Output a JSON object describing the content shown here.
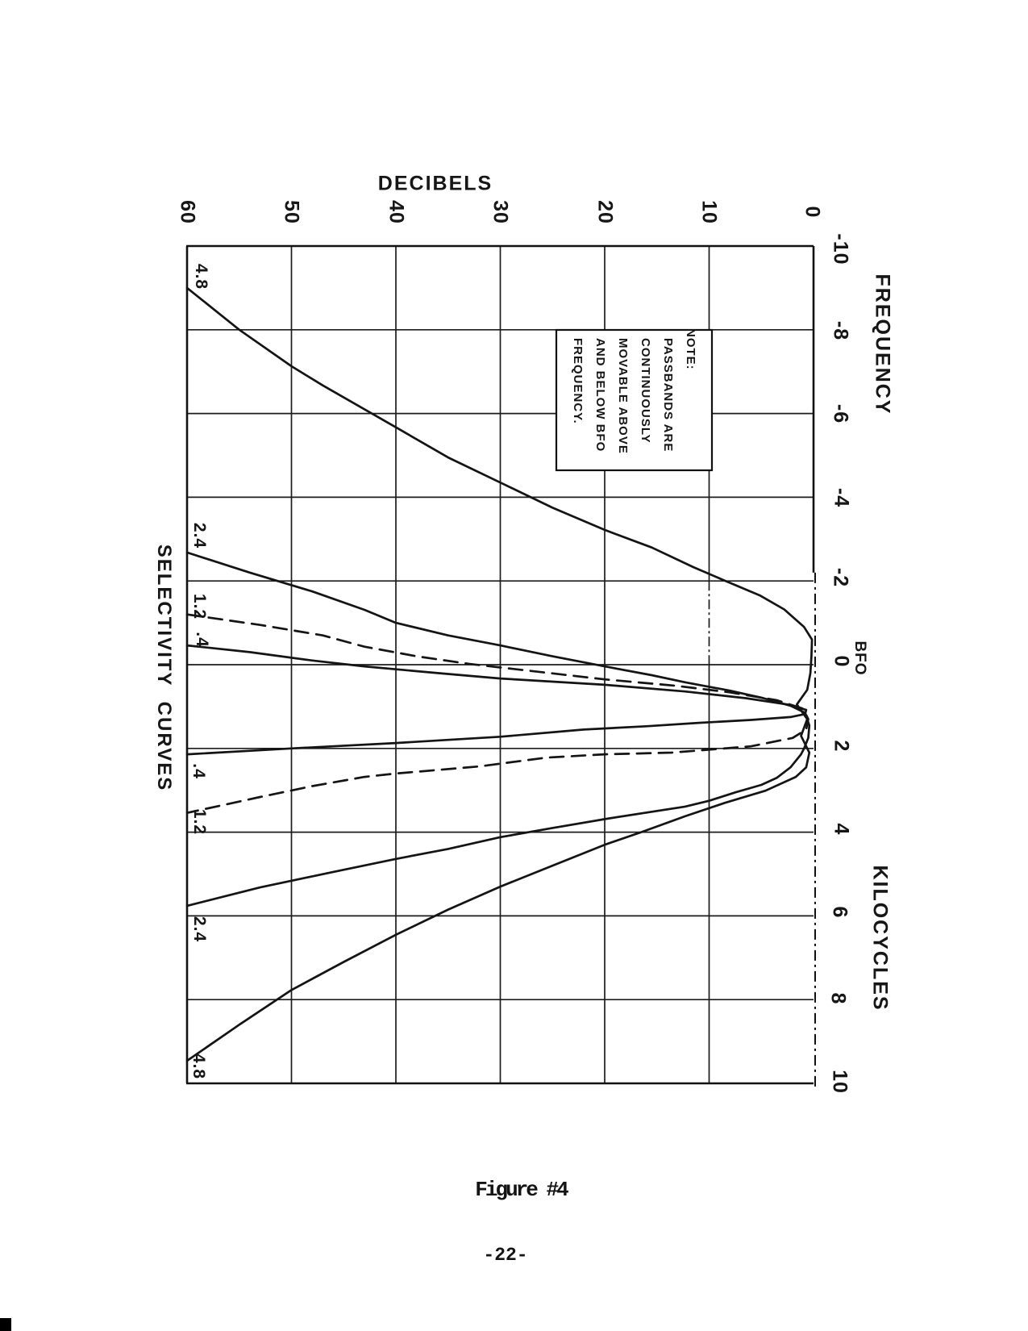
{
  "page": {
    "figure_caption": "Figure #4",
    "page_number": "-22-"
  },
  "chart_data": {
    "type": "line",
    "title": "SELECTIVITY CURVES",
    "orientation": "rotated-90-clockwise",
    "x_axis": {
      "label": "DECIBELS",
      "range": [
        60,
        0
      ],
      "grid": true,
      "ticks": [
        "60",
        "50",
        "40",
        "30",
        "20",
        "10",
        "0"
      ]
    },
    "y_axis": {
      "label": "FREQUENCY",
      "unit_label": "KILOCYCLES",
      "bfo_label": "BFO",
      "range": [
        -10,
        10
      ],
      "grid": true,
      "ticks": [
        "-10",
        "-8",
        "-6",
        "-4",
        "-2",
        "0",
        "2",
        "4",
        "6",
        "8",
        "10"
      ]
    },
    "note": {
      "lines": [
        "NOTE:",
        "PASSBANDS ARE",
        "CONTINUOUSLY",
        "MOVABLE ABOVE",
        "AND BELOW BFO",
        "FREQUENCY."
      ]
    },
    "curve_labels": {
      "upper": [
        "4.8",
        "2.4",
        "1.2",
        ".4"
      ],
      "lower": [
        ".4",
        "1.2",
        "2.4",
        "4.8"
      ]
    },
    "series": [
      {
        "name": "4.8",
        "style": "solid",
        "points_freq_db": [
          [
            -9.0,
            60
          ],
          [
            -8.0,
            55
          ],
          [
            -7.13,
            50
          ],
          [
            -6.67,
            47
          ],
          [
            -5.67,
            40
          ],
          [
            -4.95,
            35
          ],
          [
            -4.35,
            30
          ],
          [
            -3.75,
            25
          ],
          [
            -3.22,
            20
          ],
          [
            -2.8,
            15.5
          ],
          [
            -2.33,
            11.5
          ],
          [
            -2.02,
            8.6
          ],
          [
            -1.65,
            5.1
          ],
          [
            -1.32,
            2.8
          ],
          [
            -0.9,
            0.9
          ],
          [
            -0.6,
            0.15
          ],
          [
            -0.2,
            0.2
          ],
          [
            0.2,
            0.3
          ],
          [
            0.6,
            0.6
          ],
          [
            0.95,
            1.6
          ],
          [
            1.3,
            0.6
          ],
          [
            1.7,
            1.2
          ],
          [
            2.1,
            0.4
          ],
          [
            2.45,
            0.7
          ],
          [
            2.68,
            1.7
          ],
          [
            3.01,
            4.6
          ],
          [
            3.3,
            8.5
          ],
          [
            3.62,
            12.3
          ],
          [
            4.0,
            16.5
          ],
          [
            4.3,
            20
          ],
          [
            4.8,
            25
          ],
          [
            5.3,
            30
          ],
          [
            5.85,
            35
          ],
          [
            6.45,
            40
          ],
          [
            7.1,
            45
          ],
          [
            7.77,
            50
          ],
          [
            8.6,
            55
          ],
          [
            9.46,
            60
          ]
        ]
      },
      {
        "name": "2.4",
        "style": "solid",
        "points_freq_db": [
          [
            -2.68,
            60
          ],
          [
            -2.2,
            54
          ],
          [
            -1.75,
            48
          ],
          [
            -1.31,
            43
          ],
          [
            -1.0,
            40
          ],
          [
            -0.7,
            35
          ],
          [
            -0.46,
            30
          ],
          [
            -0.2,
            25
          ],
          [
            0.04,
            20
          ],
          [
            0.25,
            15.5
          ],
          [
            0.42,
            12.3
          ],
          [
            0.62,
            8
          ],
          [
            0.8,
            4.8
          ],
          [
            0.98,
            2.2
          ],
          [
            1.15,
            0.8
          ],
          [
            1.45,
            0.4
          ],
          [
            1.75,
            0.5
          ],
          [
            2.0,
            0.9
          ],
          [
            2.14,
            1.2
          ],
          [
            2.45,
            2.2
          ],
          [
            2.7,
            3.5
          ],
          [
            2.87,
            5
          ],
          [
            3.05,
            7.5
          ],
          [
            3.25,
            10
          ],
          [
            3.39,
            12.3
          ],
          [
            3.68,
            19.8
          ],
          [
            3.9,
            25
          ],
          [
            4.12,
            30
          ],
          [
            4.4,
            35
          ],
          [
            4.64,
            40
          ],
          [
            4.95,
            46
          ],
          [
            5.32,
            53
          ],
          [
            5.76,
            60
          ]
        ]
      },
      {
        "name": "1.2",
        "style": "dashed",
        "points_freq_db": [
          [
            -1.2,
            60
          ],
          [
            -0.95,
            53
          ],
          [
            -0.7,
            47
          ],
          [
            -0.43,
            43
          ],
          [
            -0.2,
            38
          ],
          [
            -0.02,
            33
          ],
          [
            0.18,
            26
          ],
          [
            0.35,
            20
          ],
          [
            0.5,
            13.3
          ],
          [
            0.66,
            8
          ],
          [
            0.85,
            3.5
          ],
          [
            1.05,
            1
          ],
          [
            1.3,
            0.5
          ],
          [
            1.55,
            0.7
          ],
          [
            1.75,
            2
          ],
          [
            1.95,
            6
          ],
          [
            2.1,
            13.6
          ],
          [
            2.14,
            20
          ],
          [
            2.22,
            25.6
          ],
          [
            2.43,
            32
          ],
          [
            2.6,
            40
          ],
          [
            2.68,
            43
          ],
          [
            2.9,
            48
          ],
          [
            3.16,
            53
          ],
          [
            3.54,
            60
          ]
        ]
      },
      {
        "name": ".4",
        "style": "solid",
        "points_freq_db": [
          [
            -0.46,
            60
          ],
          [
            -0.3,
            54
          ],
          [
            -0.1,
            48
          ],
          [
            0.04,
            43
          ],
          [
            0.2,
            36
          ],
          [
            0.33,
            30
          ],
          [
            0.48,
            20
          ],
          [
            0.64,
            12.3
          ],
          [
            0.8,
            6.5
          ],
          [
            0.95,
            2.5
          ],
          [
            1.08,
            0.7
          ],
          [
            1.18,
            0.8
          ],
          [
            1.25,
            2.2
          ],
          [
            1.32,
            6
          ],
          [
            1.39,
            11
          ],
          [
            1.47,
            16
          ],
          [
            1.55,
            22
          ],
          [
            1.72,
            30
          ],
          [
            1.87,
            40
          ],
          [
            2.0,
            50
          ],
          [
            2.14,
            60
          ]
        ]
      }
    ]
  }
}
